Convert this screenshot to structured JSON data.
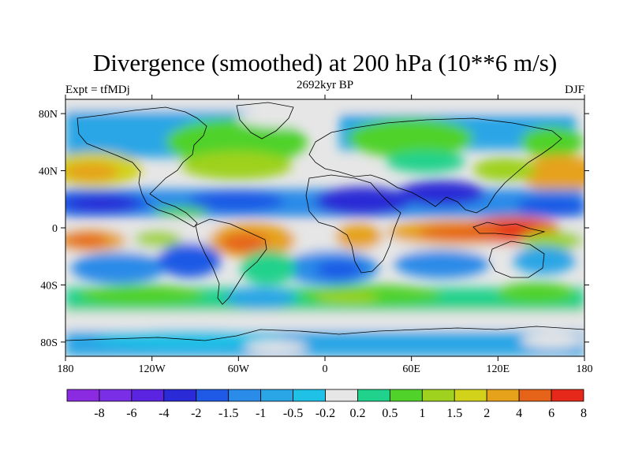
{
  "chart_data": {
    "type": "heatmap",
    "title": "Divergence (smoothed) at 200 hPa (10**6 m/s)",
    "subtitle_left": "Expt = tfMDj",
    "subtitle_center": "2692kyr BP",
    "subtitle_right": "DJF",
    "x_range": [
      -180,
      180
    ],
    "y_range": [
      -90,
      90
    ],
    "x_ticks": [
      {
        "value": -180,
        "label": "180"
      },
      {
        "value": -120,
        "label": "120W"
      },
      {
        "value": -60,
        "label": "60W"
      },
      {
        "value": 0,
        "label": "0"
      },
      {
        "value": 60,
        "label": "60E"
      },
      {
        "value": 120,
        "label": "120E"
      },
      {
        "value": 180,
        "label": "180"
      }
    ],
    "y_ticks": [
      {
        "value": 80,
        "label": "80N"
      },
      {
        "value": 40,
        "label": "40N"
      },
      {
        "value": 0,
        "label": "0"
      },
      {
        "value": -40,
        "label": "40S"
      },
      {
        "value": -80,
        "label": "80S"
      }
    ],
    "levels": [
      "-8",
      "-6",
      "-4",
      "-2",
      "-1.5",
      "-1",
      "-0.5",
      "-0.2",
      "0.2",
      "0.5",
      "1",
      "1.5",
      "2",
      "4",
      "6",
      "8"
    ],
    "colors": [
      "#8a2be2",
      "#7a2ee6",
      "#5a24e0",
      "#2a2ad6",
      "#1e5ae6",
      "#2b8be8",
      "#2aa6e6",
      "#1fc1e6",
      "#e6e6e6",
      "#20d28c",
      "#50d22a",
      "#9ed21f",
      "#d2d21a",
      "#e6a21a",
      "#e6641a",
      "#e6281a"
    ]
  }
}
